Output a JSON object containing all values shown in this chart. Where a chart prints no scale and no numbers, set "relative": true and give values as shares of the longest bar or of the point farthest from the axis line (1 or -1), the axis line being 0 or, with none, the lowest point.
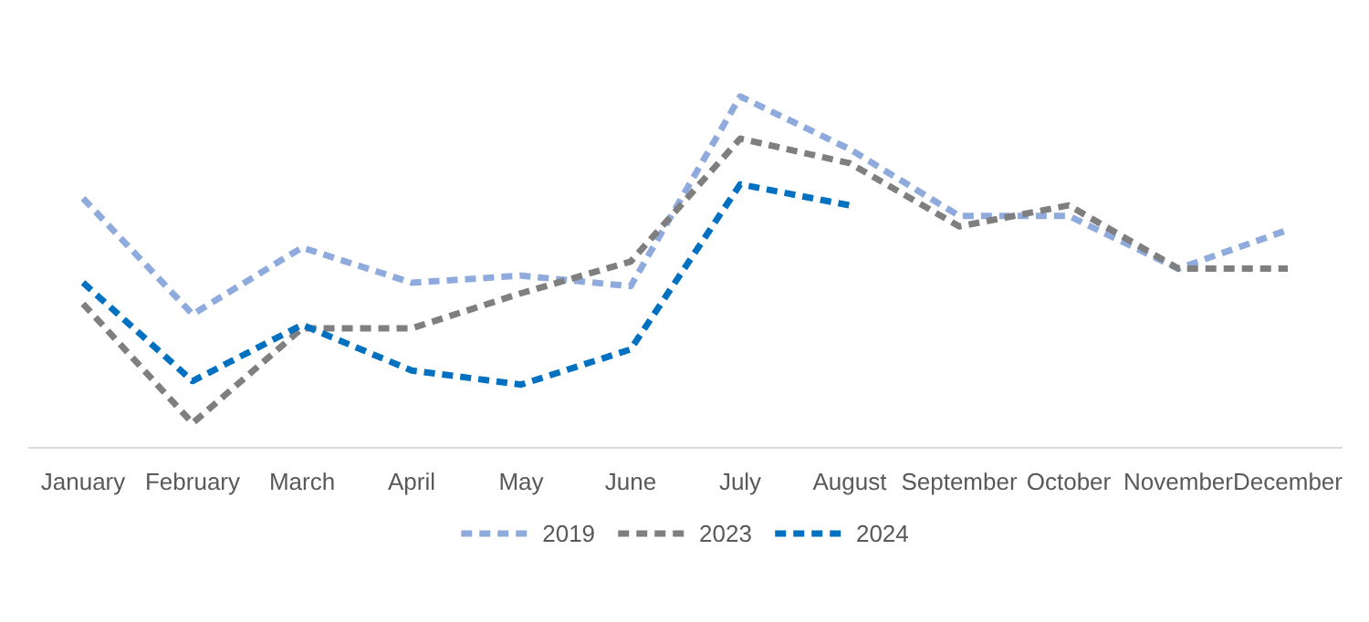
{
  "chart_data": {
    "type": "line",
    "relative": true,
    "line_style": "dashed",
    "marker": "none",
    "grid": false,
    "legend": "bottom",
    "categories": [
      "January",
      "February",
      "March",
      "April",
      "May",
      "June",
      "July",
      "August",
      "September",
      "October",
      "November",
      "December"
    ],
    "series": [
      {
        "name": "2019",
        "color": "#8faadc",
        "values": [
          0.71,
          0.38,
          0.57,
          0.47,
          0.49,
          0.46,
          1.0,
          0.85,
          0.66,
          0.66,
          0.51,
          0.62
        ]
      },
      {
        "name": "2023",
        "color": "#7f7f7f",
        "values": [
          0.41,
          0.07,
          0.34,
          0.34,
          0.44,
          0.53,
          0.88,
          0.81,
          0.63,
          0.69,
          0.51,
          0.51
        ]
      },
      {
        "name": "2024",
        "color": "#0070c0",
        "values": [
          0.47,
          0.19,
          0.35,
          0.22,
          0.18,
          0.28,
          0.75,
          0.69,
          null,
          null,
          null,
          null
        ]
      }
    ]
  }
}
